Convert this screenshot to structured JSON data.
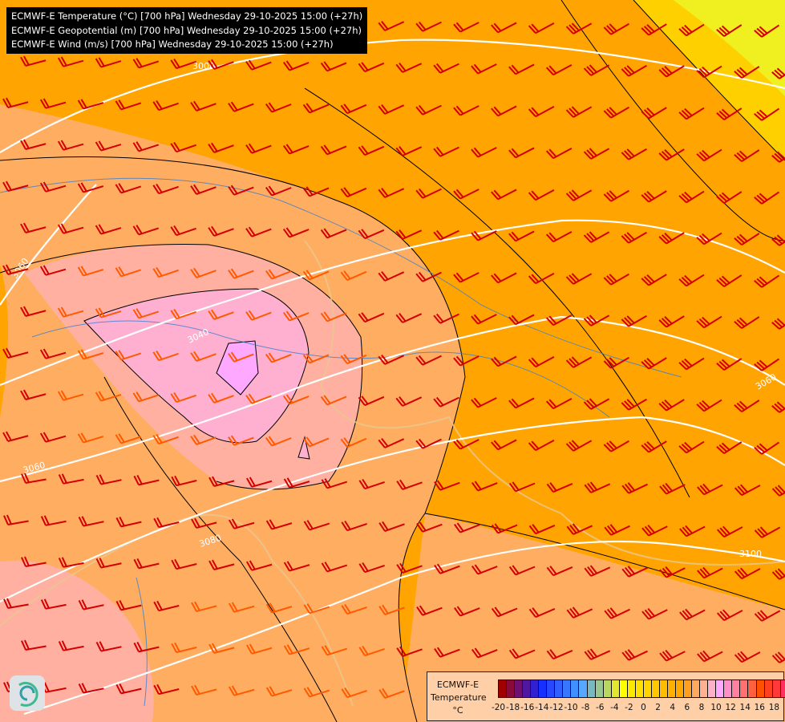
{
  "header": {
    "lines": [
      "ECMWF-E Temperature (°C) [700 hPa] Wednesday 29-10-2025 15:00 (+27h)",
      "ECMWF-E Geopotential (m) [700 hPa] Wednesday 29-10-2025 15:00 (+27h)",
      "ECMWF-E Wind (m/s) [700 hPa] Wednesday 29-10-2025 15:00 (+27h)"
    ]
  },
  "contour_labels": [
    "3000",
    "3040",
    "3060",
    "3060",
    "3060",
    "3080",
    "3100"
  ],
  "legend": {
    "title_line1": "ECMWF-E",
    "title_line2": "Temperature",
    "unit": "°C",
    "ticks": [
      "-20",
      "-18",
      "-16",
      "-14",
      "-12",
      "-10",
      "-8",
      "-6",
      "-4",
      "-2",
      "0",
      "2",
      "4",
      "6",
      "8",
      "10",
      "12",
      "14",
      "16",
      "18"
    ],
    "colors": [
      "#a00000",
      "#8a0a3a",
      "#701070",
      "#5018a0",
      "#3020d0",
      "#1830ff",
      "#2848ff",
      "#3060ff",
      "#3878ff",
      "#4090ff",
      "#58a8ff",
      "#78b8c0",
      "#98c890",
      "#b8d860",
      "#e0e830",
      "#ffff00",
      "#ffe800",
      "#ffe000",
      "#ffd400",
      "#ffc800",
      "#ffbc00",
      "#ffb000",
      "#ffa800",
      "#ffa020",
      "#ffa860",
      "#ffb090",
      "#ffb0c8",
      "#ffa8ff",
      "#ff90c8",
      "#ff80a0",
      "#ff7070",
      "#ff6040",
      "#ff5000",
      "#ff4020",
      "#ff3838",
      "#ff3060",
      "#ff2880",
      "#ff20b0",
      "#ff10f0"
    ]
  },
  "colors": {
    "wind_barb": "#d40000",
    "wind_barb_light": "#ff5a00",
    "contour": "#ffffff"
  },
  "logo": "ecmwf-swirl-logo"
}
